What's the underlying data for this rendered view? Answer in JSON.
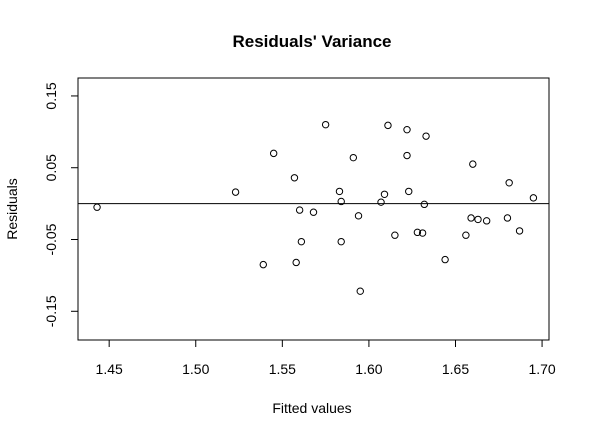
{
  "chart_data": {
    "type": "scatter",
    "title": "Residuals' Variance",
    "xlabel": "Fitted values",
    "ylabel": "Residuals",
    "xlim": [
      1.432,
      1.704
    ],
    "ylim": [
      -0.19,
      0.175
    ],
    "xticks": [
      "1.45",
      "1.50",
      "1.55",
      "1.60",
      "1.65",
      "1.70"
    ],
    "yticks": [
      "-0.15",
      "-0.05",
      "0.05",
      "0.15"
    ],
    "reference_line_y": 0,
    "grid": false,
    "legend": "none",
    "points": [
      {
        "x": 1.443,
        "y": -0.005
      },
      {
        "x": 1.523,
        "y": 0.016
      },
      {
        "x": 1.539,
        "y": -0.085
      },
      {
        "x": 1.545,
        "y": 0.07
      },
      {
        "x": 1.557,
        "y": 0.036
      },
      {
        "x": 1.558,
        "y": -0.082
      },
      {
        "x": 1.56,
        "y": -0.009
      },
      {
        "x": 1.561,
        "y": -0.053
      },
      {
        "x": 1.568,
        "y": -0.012
      },
      {
        "x": 1.575,
        "y": 0.11
      },
      {
        "x": 1.583,
        "y": 0.017
      },
      {
        "x": 1.584,
        "y": -0.053
      },
      {
        "x": 1.584,
        "y": 0.003
      },
      {
        "x": 1.591,
        "y": 0.064
      },
      {
        "x": 1.594,
        "y": -0.017
      },
      {
        "x": 1.595,
        "y": -0.122
      },
      {
        "x": 1.607,
        "y": 0.002
      },
      {
        "x": 1.609,
        "y": 0.013
      },
      {
        "x": 1.611,
        "y": 0.109
      },
      {
        "x": 1.615,
        "y": -0.044
      },
      {
        "x": 1.622,
        "y": 0.103
      },
      {
        "x": 1.622,
        "y": 0.067
      },
      {
        "x": 1.623,
        "y": 0.017
      },
      {
        "x": 1.628,
        "y": -0.04
      },
      {
        "x": 1.631,
        "y": -0.041
      },
      {
        "x": 1.632,
        "y": -0.001
      },
      {
        "x": 1.633,
        "y": 0.094
      },
      {
        "x": 1.644,
        "y": -0.078
      },
      {
        "x": 1.656,
        "y": -0.044
      },
      {
        "x": 1.659,
        "y": -0.02
      },
      {
        "x": 1.66,
        "y": 0.055
      },
      {
        "x": 1.663,
        "y": -0.022
      },
      {
        "x": 1.668,
        "y": -0.024
      },
      {
        "x": 1.68,
        "y": -0.02
      },
      {
        "x": 1.681,
        "y": 0.029
      },
      {
        "x": 1.687,
        "y": -0.038
      },
      {
        "x": 1.695,
        "y": 0.008
      }
    ]
  }
}
